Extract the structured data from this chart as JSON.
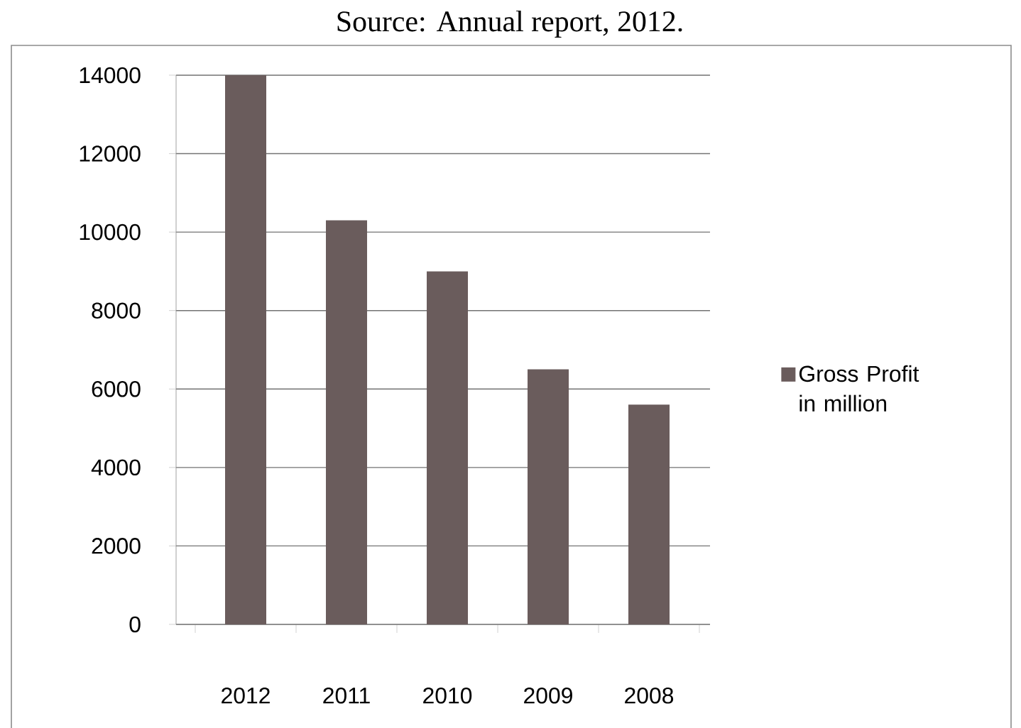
{
  "chart_data": {
    "type": "bar",
    "annotations": [
      "Source: Annual report, 2012."
    ],
    "categories": [
      "2012",
      "2011",
      "2010",
      "2009",
      "2008"
    ],
    "series": [
      {
        "name": "Gross Profit in million",
        "color": "#6a5c5c",
        "values": [
          14000,
          10300,
          9000,
          6500,
          5600
        ]
      }
    ],
    "ylim": [
      0,
      14000
    ],
    "yticks": [
      0,
      2000,
      4000,
      6000,
      8000,
      10000,
      12000,
      14000
    ],
    "grid": "y",
    "legend": "right"
  }
}
